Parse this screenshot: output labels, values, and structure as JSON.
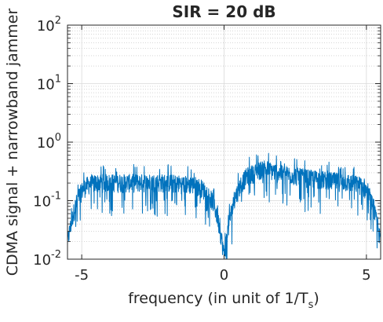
{
  "chart_data": {
    "type": "line",
    "title": "SIR = 20 dB",
    "xlabel": {
      "main": "frequency (in unit of 1/T",
      "subscript": "s",
      "close": ")"
    },
    "ylabel": "CDMA signal + narrowband jammer",
    "x_range": [
      -5.5,
      5.5
    ],
    "y_range": [
      0.01,
      100
    ],
    "y_scale": "log",
    "grid": true,
    "minor_grid": true,
    "x_ticks": [
      {
        "value": -5,
        "label": "-5"
      },
      {
        "value": 0,
        "label": "0"
      },
      {
        "value": 5,
        "label": "5"
      }
    ],
    "y_ticks": [
      {
        "value": 0.01,
        "base": "10",
        "exp": "-2"
      },
      {
        "value": 0.1,
        "base": "10",
        "exp": "-1"
      },
      {
        "value": 1,
        "base": "10",
        "exp": "0"
      },
      {
        "value": 10,
        "base": "10",
        "exp": "1"
      },
      {
        "value": 100,
        "base": "10",
        "exp": "2"
      }
    ],
    "series": [
      {
        "color": "#0072BD",
        "x": [
          -5.5,
          -5.4,
          -5.3,
          -5.2,
          -5.1,
          -5.0,
          -4.9,
          -4.8,
          -4.6,
          -4.4,
          -4.0,
          -3.0,
          -2.0,
          -1.5,
          -1.0,
          -0.8,
          -0.6,
          -0.4,
          -0.3,
          -0.2,
          -0.1,
          0.0,
          0.1,
          0.2,
          0.3,
          0.4,
          0.6,
          0.8,
          1.0,
          1.2,
          1.4,
          1.6,
          2.0,
          3.0,
          4.0,
          4.4,
          4.6,
          4.8,
          4.9,
          5.0,
          5.1,
          5.2,
          5.3,
          5.4,
          5.5
        ],
        "y": [
          0.02,
          0.035,
          0.06,
          0.09,
          0.12,
          0.15,
          0.17,
          0.19,
          0.2,
          0.21,
          0.21,
          0.21,
          0.21,
          0.2,
          0.19,
          0.17,
          0.14,
          0.1,
          0.07,
          0.045,
          0.025,
          0.012,
          0.025,
          0.05,
          0.08,
          0.12,
          0.2,
          0.27,
          0.3,
          0.33,
          0.38,
          0.34,
          0.3,
          0.25,
          0.22,
          0.21,
          0.2,
          0.19,
          0.17,
          0.15,
          0.12,
          0.09,
          0.06,
          0.035,
          0.02
        ]
      }
    ]
  }
}
